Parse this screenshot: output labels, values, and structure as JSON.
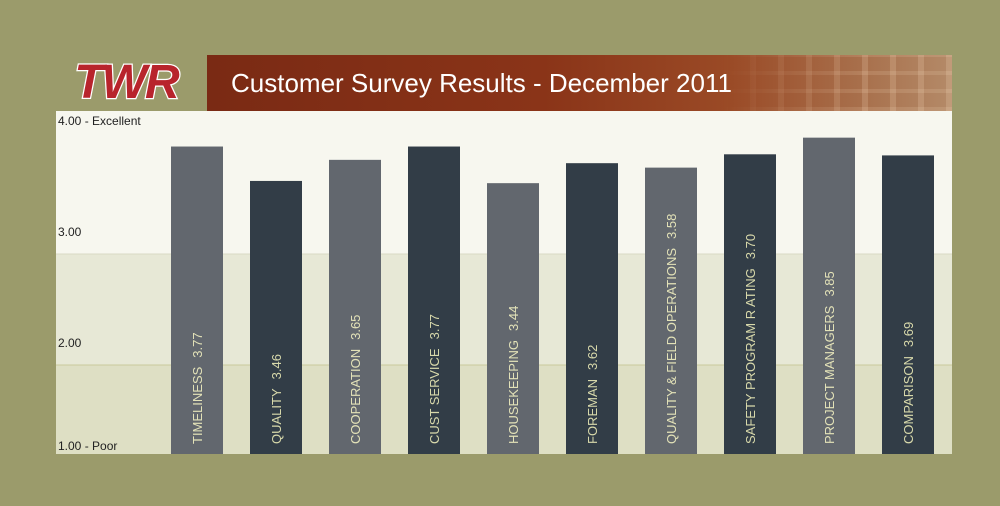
{
  "logo": {
    "text": "TWR"
  },
  "banner": {
    "title": "Customer Survey Results - December 2011"
  },
  "colors": {
    "background": "#9b9b6b",
    "bar_light": "#62676e",
    "bar_dark": "#323d47",
    "band_top": "#f7f7ef",
    "band_mid": "#e7e8d6",
    "band_low": "#dedfc4",
    "label_light": "#e3e2b8",
    "label_dark": "#d8d9ab"
  },
  "chart_data": {
    "type": "bar",
    "categories": [
      "TIMELINESS",
      "QUALITY",
      "COOPERATION",
      "CUST SERVICE",
      "HOUSEKEEPING",
      "FOREMAN",
      "QUALITY & FIELD OPERATIONS",
      "SAFETY PROGRAM R ATING",
      "PROJECT MANAGERS",
      "COMPARISON"
    ],
    "values": [
      3.77,
      3.46,
      3.65,
      3.77,
      3.44,
      3.62,
      3.58,
      3.7,
      3.85,
      3.69
    ],
    "value_labels": [
      "3.77",
      "3.46",
      "3.65",
      "3.77",
      "3.44",
      "3.62",
      "3.58",
      "3.70",
      "3.85",
      "3.69"
    ],
    "yticks": [
      {
        "value": 4,
        "label": "4.00 - Excellent"
      },
      {
        "value": 3,
        "label": "3.00"
      },
      {
        "value": 2,
        "label": "2.00"
      },
      {
        "value": 1,
        "label": "1.00 - Poor"
      }
    ],
    "ylim": [
      1,
      4
    ],
    "bar_shades": [
      "light",
      "dark",
      "light",
      "dark",
      "light",
      "dark",
      "light",
      "dark",
      "light",
      "dark"
    ],
    "grid": false,
    "legend": "none"
  }
}
